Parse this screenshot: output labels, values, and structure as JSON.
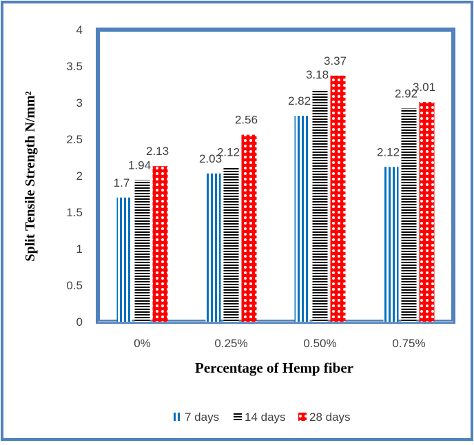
{
  "chart_data": {
    "type": "bar",
    "categories": [
      "0%",
      "0.25%",
      "0.50%",
      "0.75%"
    ],
    "series": [
      {
        "name": "7 days",
        "values": [
          1.7,
          2.03,
          2.82,
          2.12
        ],
        "labels": [
          "1.7",
          "2.03",
          "2.82",
          "2.12"
        ]
      },
      {
        "name": "14 days",
        "values": [
          1.94,
          2.12,
          3.18,
          2.92
        ],
        "labels": [
          "1.94",
          "2.12",
          "3.18",
          "2.92"
        ]
      },
      {
        "name": "28 days",
        "values": [
          2.13,
          2.56,
          3.37,
          3.01
        ],
        "labels": [
          "2.13",
          "2.56",
          "3.37",
          "3.01"
        ]
      }
    ],
    "ylim": [
      0,
      4
    ],
    "yticks": [
      "0",
      "0.5",
      "1",
      "1.5",
      "2",
      "2.5",
      "3",
      "3.5",
      "4"
    ],
    "ylabel": "Split Tensile Strength N/mm²",
    "xlabel": "Percentage of Hemp fiber",
    "legend_position": "bottom",
    "grid": false
  },
  "colors": {
    "frame": "#4f81bd",
    "plot_border": "#4f81bd",
    "seven_days": "#0070c0",
    "fourteen_days": "#000000",
    "twenty_eight_days": "#ff0000",
    "text": "#404040"
  }
}
